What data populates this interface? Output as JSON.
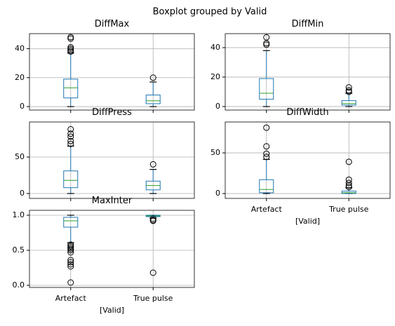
{
  "title": "Boxplot grouped by Valid",
  "categories": [
    "Artefact",
    "True pulse"
  ],
  "box_color": "#1f77b4",
  "median_color": "#2ca02c",
  "grid": true,
  "chart_data": [
    {
      "type": "box",
      "title": "DiffMax",
      "ylim": [
        -2.4,
        50.4
      ],
      "yticks": [
        0,
        20,
        40
      ],
      "boxes": [
        {
          "whislo": 0,
          "q1": 6,
          "med": 13,
          "q3": 19,
          "whishi": 37,
          "fliers": [
            38,
            39,
            40,
            41,
            47,
            48
          ]
        },
        {
          "whislo": 0,
          "q1": 2,
          "med": 4,
          "q3": 8,
          "whishi": 17,
          "fliers": [
            20
          ]
        }
      ]
    },
    {
      "type": "box",
      "title": "DiffMin",
      "ylim": [
        -2.4,
        49.5
      ],
      "yticks": [
        0,
        20,
        40
      ],
      "boxes": [
        {
          "whislo": 0,
          "q1": 5,
          "med": 9,
          "q3": 19,
          "whishi": 38,
          "fliers": [
            42,
            43,
            47
          ]
        },
        {
          "whislo": 0,
          "q1": 1,
          "med": 2,
          "q3": 4,
          "whishi": 9,
          "fliers": [
            10,
            11,
            13
          ]
        }
      ]
    },
    {
      "type": "box",
      "title": "DiffPress",
      "ylim": [
        -6.7,
        98
      ],
      "yticks": [
        0,
        50
      ],
      "boxes": [
        {
          "whislo": 0,
          "q1": 8,
          "med": 18,
          "q3": 31,
          "whishi": 65,
          "fliers": [
            68,
            72,
            78,
            82,
            88
          ]
        },
        {
          "whislo": 0,
          "q1": 5,
          "med": 11,
          "q3": 17,
          "whishi": 33,
          "fliers": [
            40
          ]
        }
      ]
    },
    {
      "type": "box",
      "title": "DiffWidth",
      "ylim": [
        -6,
        88
      ],
      "yticks": [
        0,
        50
      ],
      "xlabel": "[Valid]",
      "boxes": [
        {
          "whislo": 0,
          "q1": 1,
          "med": 5,
          "q3": 17,
          "whishi": 42,
          "fliers": [
            45,
            49,
            58,
            81
          ]
        },
        {
          "whislo": 0,
          "q1": 0,
          "med": 1,
          "q3": 3,
          "whishi": 7,
          "fliers": [
            8,
            10,
            13,
            17,
            39
          ]
        }
      ]
    },
    {
      "type": "box",
      "title": "MaxInter",
      "ylim": [
        -0.03,
        1.07
      ],
      "yticks": [
        {
          "value": 0,
          "label": "0.0"
        },
        0.5,
        {
          "value": 1,
          "label": "1.0"
        }
      ],
      "xlabel": "[Valid]",
      "boxes": [
        {
          "whislo": 0.61,
          "q1": 0.83,
          "med": 0.92,
          "q3": 0.97,
          "whishi": 1.0,
          "fliers": [
            0.58,
            0.56,
            0.54,
            0.52,
            0.5,
            0.47,
            0.36,
            0.33,
            0.3,
            0.27,
            0.04
          ]
        },
        {
          "whislo": 0.96,
          "q1": 0.98,
          "med": 0.99,
          "q3": 1.0,
          "whishi": 1.0,
          "fliers": [
            0.95,
            0.93,
            0.92,
            0.18
          ]
        }
      ]
    }
  ]
}
